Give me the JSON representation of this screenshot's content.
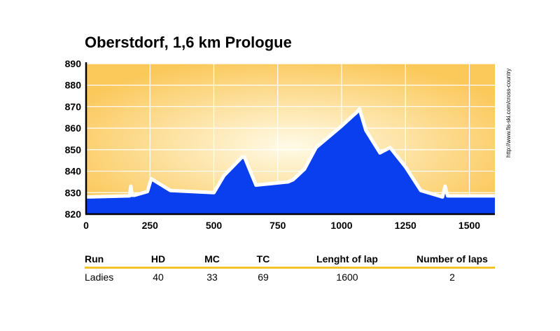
{
  "title": "Oberstdorf, 1,6 km Prologue",
  "source_note": "http://www.fis-ski.com/cross-country",
  "chart_data": {
    "type": "area",
    "title": "Oberstdorf, 1,6 km Prologue",
    "xlim": [
      0,
      1600
    ],
    "ylim": [
      820,
      890
    ],
    "xticks": [
      0,
      250,
      500,
      750,
      1000,
      1250,
      1500
    ],
    "yticks": [
      820,
      830,
      840,
      850,
      860,
      870,
      880,
      890
    ],
    "grid": true,
    "colors": {
      "area": "#0a3ff0",
      "outline": "#ffffff",
      "background_edge": "#fbc85a",
      "background_center": "#fffbe8"
    },
    "x": [
      0,
      170,
      175,
      180,
      190,
      240,
      255,
      275,
      330,
      500,
      540,
      610,
      620,
      665,
      790,
      810,
      855,
      900,
      1000,
      1060,
      1070,
      1095,
      1150,
      1190,
      1250,
      1310,
      1395,
      1405,
      1415,
      1600
    ],
    "y": [
      828,
      828.5,
      833,
      828.8,
      828.8,
      830.5,
      836.5,
      835,
      831,
      830,
      838,
      846.5,
      846.5,
      833.5,
      835,
      836,
      841,
      851,
      861,
      867.5,
      869,
      859,
      848.5,
      851,
      842,
      831,
      828,
      833,
      828.5,
      828.5
    ]
  },
  "table": {
    "columns": [
      "Run",
      "HD",
      "MC",
      "TC",
      "Lenght of lap",
      "Number of laps"
    ],
    "rows": [
      [
        "Ladies",
        "40",
        "33",
        "69",
        "1600",
        "2"
      ]
    ]
  }
}
